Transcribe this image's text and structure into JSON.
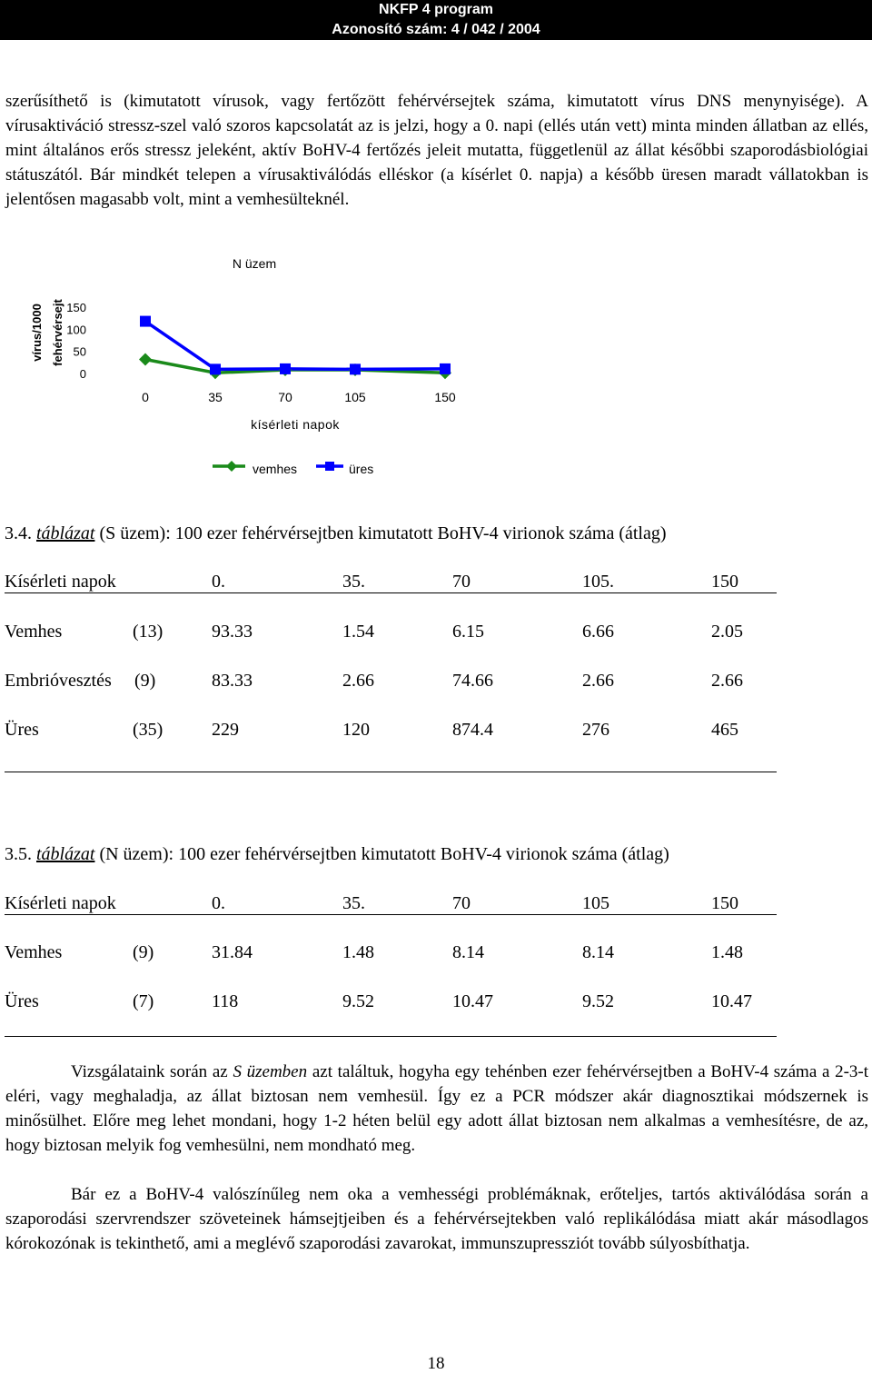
{
  "header": {
    "line1": "NKFP 4 program",
    "line2": "Azonosító szám: 4 / 042 / 2004"
  },
  "para1": "szerűsíthető is (kimutatott vírusok, vagy fertőzött fehérvérsejtek száma, kimutatott vírus DNS menynyisége). A vírusaktiváció stressz-szel való szoros kapcsolatát az is jelzi, hogy a 0. napi (ellés után vett) minta minden állatban az ellés, mint általános erős stressz jeleként, aktív BoHV-4 fertőzés jeleit mutatta, függetlenül az állat későbbi szaporodásbiológiai státuszától. Bár mindkét telepen a vírusaktiválódás elléskor (a kísérlet 0. napja) a később üresen maradt vállatokban is jelentősen magasabb volt, mint a vemhesülteknél.",
  "chart_data": {
    "type": "line",
    "title": "N üzem",
    "xlabel": "kísérleti napok",
    "ylabel_line1": "vírus/1000",
    "ylabel_line2": "fehérvérsejt",
    "x": [
      0,
      35,
      70,
      105,
      150
    ],
    "xticks": [
      "0",
      "35",
      "70",
      "105",
      "150"
    ],
    "yticks": [
      "150",
      "100",
      "50",
      "0"
    ],
    "ylim": [
      0,
      150
    ],
    "series": [
      {
        "name": "vemhes",
        "values": [
          31.84,
          1.48,
          8.14,
          8.14,
          1.48
        ],
        "color": "#1a8a1a",
        "marker": "diamond"
      },
      {
        "name": "üres",
        "values": [
          118,
          9.52,
          10.47,
          9.52,
          10.47
        ],
        "color": "#0000ff",
        "marker": "square"
      }
    ]
  },
  "table4": {
    "caption_num": "3.4.",
    "caption_word": "táblázat",
    "caption_rest": "(S üzem): 100 ezer fehérvérsejtben kimutatott BoHV-4 virionok száma (átlag)",
    "header": [
      "Kísérleti napok",
      "0.",
      "35.",
      "70",
      "105.",
      "150"
    ],
    "rows": [
      {
        "name": "Vemhes",
        "n": "(13)",
        "vals": [
          "93.33",
          "1.54",
          "6.15",
          "6.66",
          "2.05"
        ]
      },
      {
        "name": "Embrióvesztés",
        "n": "(9)",
        "vals": [
          "83.33",
          "2.66",
          "74.66",
          "2.66",
          "2.66"
        ]
      },
      {
        "name": "Üres",
        "n": "(35)",
        "vals": [
          "229",
          "120",
          "874.4",
          "276",
          "465"
        ]
      }
    ]
  },
  "table5": {
    "caption_num": "3.5.",
    "caption_word": "táblázat",
    "caption_rest": "(N üzem): 100 ezer fehérvérsejtben kimutatott BoHV-4 virionok száma (átlag)",
    "header": [
      "Kísérleti napok",
      "0.",
      "35.",
      "70",
      "105",
      "150"
    ],
    "rows": [
      {
        "name": "Vemhes",
        "n": "(9)",
        "vals": [
          "31.84",
          "1.48",
          "8.14",
          "8.14",
          "1.48"
        ]
      },
      {
        "name": "Üres",
        "n": "(7)",
        "vals": [
          "118",
          "9.52",
          "10.47",
          "9.52",
          "10.47"
        ]
      }
    ]
  },
  "para2_a": "Vizsgálataink során az ",
  "para2_em": "S üzemben",
  "para2_b": " azt találtuk, hogyha egy tehénben ezer fehérvérsejtben a BoHV-4 száma a 2-3-t eléri, vagy meghaladja, az állat biztosan nem vemhesül. Így ez a PCR módszer akár diagnosztikai módszernek is minősülhet. Előre meg lehet mondani, hogy 1-2 héten belül egy adott állat biztosan nem alkalmas a vemhesítésre, de az, hogy biztosan melyik fog vemhesülni, nem mondható meg.",
  "para3": "Bár ez a BoHV-4 valószínűleg nem oka a vemhességi problémáknak, erőteljes, tartós aktiválódása során a szaporodási szervrendszer szöveteinek hámsejtjeiben és a fehérvérsejtekben való replikálódása miatt akár másodlagos kórokozónak is tekinthető, ami a meglévő szaporodási zavarokat, immunszupressziót tovább súlyosbíthatja.",
  "page_number": "18"
}
